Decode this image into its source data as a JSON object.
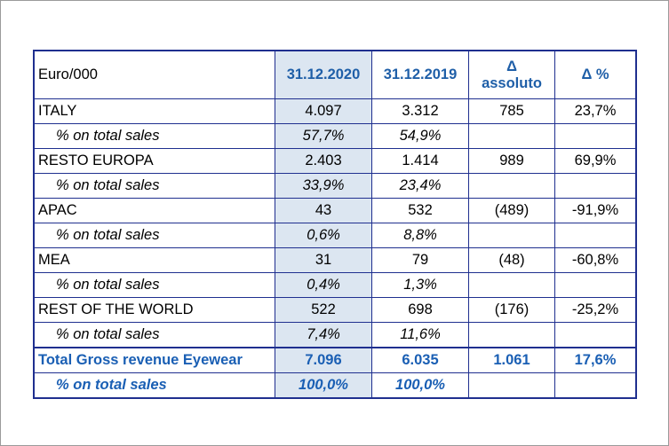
{
  "header": {
    "unit": "Euro/000",
    "col_2020": "31.12.2020",
    "col_2019": "31.12.2019",
    "col_delta_symbol": "Δ",
    "col_delta_label": "assoluto",
    "col_delta_pct": "Δ %"
  },
  "rows": [
    {
      "label": "ITALY",
      "v2020": "4.097",
      "v2019": "3.312",
      "delta": "785",
      "delta_pct": "23,7%"
    },
    {
      "label": "% on total sales",
      "v2020": "57,7%",
      "v2019": "54,9%",
      "delta": "",
      "delta_pct": ""
    },
    {
      "label": "RESTO EUROPA",
      "v2020": "2.403",
      "v2019": "1.414",
      "delta": "989",
      "delta_pct": "69,9%"
    },
    {
      "label": "% on total sales",
      "v2020": "33,9%",
      "v2019": "23,4%",
      "delta": "",
      "delta_pct": ""
    },
    {
      "label": "APAC",
      "v2020": "43",
      "v2019": "532",
      "delta": "(489)",
      "delta_pct": "-91,9%"
    },
    {
      "label": "% on total sales",
      "v2020": "0,6%",
      "v2019": "8,8%",
      "delta": "",
      "delta_pct": ""
    },
    {
      "label": "MEA",
      "v2020": "31",
      "v2019": "79",
      "delta": "(48)",
      "delta_pct": "-60,8%"
    },
    {
      "label": "% on total sales",
      "v2020": "0,4%",
      "v2019": "1,3%",
      "delta": "",
      "delta_pct": ""
    },
    {
      "label": "REST OF THE WORLD",
      "v2020": "522",
      "v2019": "698",
      "delta": "(176)",
      "delta_pct": "-25,2%"
    },
    {
      "label": "% on total sales",
      "v2020": "7,4%",
      "v2019": "11,6%",
      "delta": "",
      "delta_pct": ""
    }
  ],
  "total": {
    "label": "Total Gross revenue Eyewear",
    "v2020": "7.096",
    "v2019": "6.035",
    "delta": "1.061",
    "delta_pct": "17,6%"
  },
  "total_pct": {
    "label": "% on total sales",
    "v2020": "100,0%",
    "v2019": "100,0%",
    "delta": "",
    "delta_pct": ""
  },
  "colors": {
    "border": "#1f2f8f",
    "highlight_column": "#dce6f1",
    "accent_text": "#1a5fb4"
  }
}
